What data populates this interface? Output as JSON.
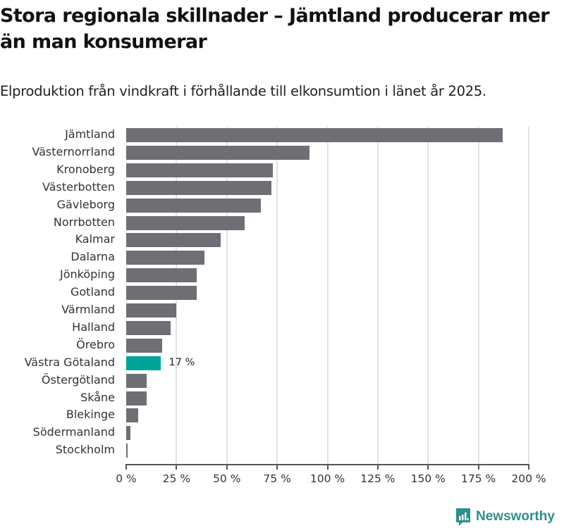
{
  "header": {
    "title": "Stora regionala skillnader – Jämtland producerar mer än man konsumerar",
    "subtitle": "Elproduktion från vindkraft i förhållande till elkonsumtion i länet år 2025."
  },
  "footer": {
    "brand": "Newsworthy",
    "brand_color": "#2e8f8a"
  },
  "colors": {
    "bar": "#6f6e74",
    "highlight": "#00a398",
    "grid": "#e2e2e2"
  },
  "axis": {
    "ticks": [
      "0 %",
      "25 %",
      "50 %",
      "75 %",
      "100 %",
      "125 %",
      "150 %",
      "175 %",
      "200 %"
    ]
  },
  "highlight_label": "17 %",
  "chart_data": {
    "type": "bar",
    "orientation": "horizontal",
    "title": "Stora regionala skillnader – Jämtland producerar mer än man konsumerar",
    "subtitle": "Elproduktion från vindkraft i förhållande till elkonsumtion i länet år 2025.",
    "xlabel": "",
    "ylabel": "",
    "xlim": [
      0,
      200
    ],
    "x_ticks": [
      0,
      25,
      50,
      75,
      100,
      125,
      150,
      175,
      200
    ],
    "x_tick_labels": [
      "0 %",
      "25 %",
      "50 %",
      "75 %",
      "100 %",
      "125 %",
      "150 %",
      "175 %",
      "200 %"
    ],
    "grid": true,
    "legend": null,
    "categories": [
      "Jämtland",
      "Västernorrland",
      "Kronoberg",
      "Västerbotten",
      "Gävleborg",
      "Norrbotten",
      "Kalmar",
      "Dalarna",
      "Jönköping",
      "Gotland",
      "Värmland",
      "Halland",
      "Örebro",
      "Västra Götaland",
      "Östergötland",
      "Skåne",
      "Blekinge",
      "Södermanland",
      "Stockholm"
    ],
    "values": [
      187,
      91,
      73,
      72,
      67,
      59,
      47,
      39,
      35,
      35,
      25,
      22,
      18,
      17,
      10,
      10,
      6,
      2,
      0.5
    ],
    "highlighted": "Västra Götaland",
    "annotations": [
      {
        "category": "Västra Götaland",
        "text": "17 %"
      }
    ]
  }
}
